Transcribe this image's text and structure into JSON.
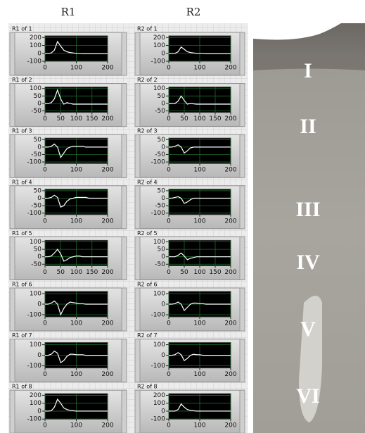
{
  "columns": [
    "R1",
    "R2"
  ],
  "layers": [
    "I",
    "II",
    "III",
    "IV",
    "V",
    "VI"
  ],
  "chart_data": [
    {
      "type": "line",
      "title": "R1 of 1",
      "x": [
        0,
        10,
        20,
        30,
        40,
        50,
        60,
        70,
        80,
        90,
        100,
        110,
        120,
        130,
        140,
        150,
        160,
        170,
        180,
        190,
        200
      ],
      "values": [
        0,
        0,
        5,
        40,
        150,
        90,
        40,
        20,
        10,
        5,
        0,
        0,
        -5,
        -5,
        -5,
        -5,
        -5,
        -5,
        -5,
        -5,
        -5
      ],
      "color": "#ffffff",
      "xlim": [
        0,
        200
      ],
      "xticks": [
        0,
        100,
        200
      ],
      "ylim": [
        -100,
        220
      ],
      "yticks": [
        200,
        100,
        0,
        -100
      ],
      "grid": true
    },
    {
      "type": "line",
      "title": "R2 of 1",
      "x": [
        0,
        10,
        20,
        30,
        40,
        50,
        60,
        70,
        80,
        90,
        100,
        110,
        120,
        130,
        140,
        150,
        160,
        170,
        180,
        190,
        200
      ],
      "values": [
        0,
        0,
        0,
        20,
        80,
        50,
        20,
        10,
        5,
        0,
        0,
        0,
        -5,
        -5,
        -5,
        -5,
        -5,
        -5,
        -5,
        -5,
        -5
      ],
      "color": "#ffffff",
      "xlim": [
        0,
        200
      ],
      "xticks": [
        0,
        100,
        200
      ],
      "ylim": [
        -100,
        220
      ],
      "yticks": [
        200,
        100,
        0,
        -100
      ],
      "grid": true
    },
    {
      "type": "line",
      "title": "R1 of 2",
      "x": [
        0,
        10,
        20,
        30,
        40,
        50,
        60,
        70,
        80,
        90,
        100,
        110,
        120,
        130,
        140,
        150,
        160,
        170,
        180,
        190,
        200
      ],
      "values": [
        0,
        0,
        5,
        30,
        90,
        30,
        -5,
        5,
        0,
        -5,
        -5,
        -5,
        -5,
        -5,
        -5,
        -5,
        -5,
        -5,
        -5,
        -5,
        -5
      ],
      "color": "#ffffff",
      "xlim": [
        0,
        200
      ],
      "xticks": [
        0,
        50,
        100,
        150,
        200
      ],
      "ylim": [
        -60,
        110
      ],
      "yticks": [
        100,
        50,
        0,
        -50
      ],
      "grid": true
    },
    {
      "type": "line",
      "title": "R2 of 2",
      "x": [
        0,
        10,
        20,
        30,
        40,
        50,
        60,
        70,
        80,
        90,
        100,
        110,
        120,
        130,
        140,
        150,
        160,
        170,
        180,
        190,
        200
      ],
      "values": [
        0,
        0,
        0,
        15,
        50,
        20,
        -5,
        0,
        -3,
        -5,
        -5,
        -5,
        -5,
        -5,
        -5,
        -5,
        -5,
        -5,
        -5,
        -5,
        -5
      ],
      "color": "#ffffff",
      "xlim": [
        0,
        200
      ],
      "xticks": [
        0,
        50,
        100,
        150,
        200
      ],
      "ylim": [
        -60,
        110
      ],
      "yticks": [
        100,
        50,
        0,
        -50
      ],
      "grid": true
    },
    {
      "type": "line",
      "title": "R1 of 3",
      "x": [
        0,
        10,
        20,
        30,
        40,
        50,
        60,
        70,
        80,
        90,
        100,
        110,
        120,
        130,
        140,
        150,
        160,
        170,
        180,
        190,
        200
      ],
      "values": [
        0,
        0,
        5,
        20,
        0,
        -70,
        -40,
        -10,
        0,
        5,
        5,
        5,
        5,
        0,
        0,
        0,
        0,
        0,
        0,
        0,
        0
      ],
      "color": "#ffffff",
      "xlim": [
        0,
        200
      ],
      "xticks": [
        0,
        100,
        200
      ],
      "ylim": [
        -110,
        60
      ],
      "yticks": [
        50,
        0,
        -50,
        -100
      ],
      "grid": true
    },
    {
      "type": "line",
      "title": "R2 of 3",
      "x": [
        0,
        10,
        20,
        30,
        40,
        50,
        60,
        70,
        80,
        90,
        100,
        110,
        120,
        130,
        140,
        150,
        160,
        170,
        180,
        190,
        200
      ],
      "values": [
        0,
        0,
        5,
        15,
        0,
        -40,
        -25,
        -5,
        0,
        0,
        0,
        0,
        0,
        0,
        0,
        0,
        0,
        0,
        0,
        0,
        0
      ],
      "color": "#ffffff",
      "xlim": [
        0,
        200
      ],
      "xticks": [
        0,
        100,
        200
      ],
      "ylim": [
        -110,
        60
      ],
      "yticks": [
        50,
        0,
        -50,
        -100
      ],
      "grid": true
    },
    {
      "type": "line",
      "title": "R1 of 4",
      "x": [
        0,
        10,
        20,
        30,
        40,
        50,
        60,
        70,
        80,
        90,
        100,
        110,
        120,
        130,
        140,
        150,
        160,
        170,
        180,
        190,
        200
      ],
      "values": [
        0,
        0,
        5,
        20,
        5,
        -60,
        -50,
        -20,
        -5,
        0,
        5,
        5,
        5,
        5,
        0,
        0,
        0,
        0,
        0,
        0,
        0
      ],
      "color": "#ffffff",
      "xlim": [
        0,
        200
      ],
      "xticks": [
        0,
        100,
        200
      ],
      "ylim": [
        -110,
        60
      ],
      "yticks": [
        50,
        0,
        -50,
        -100
      ],
      "grid": true
    },
    {
      "type": "line",
      "title": "R2 of 4",
      "x": [
        0,
        10,
        20,
        30,
        40,
        50,
        60,
        70,
        80,
        90,
        100,
        110,
        120,
        130,
        140,
        150,
        160,
        170,
        180,
        190,
        200
      ],
      "values": [
        0,
        0,
        5,
        10,
        0,
        -35,
        -25,
        -10,
        0,
        0,
        0,
        0,
        0,
        0,
        0,
        0,
        0,
        0,
        0,
        0,
        0
      ],
      "color": "#ffffff",
      "xlim": [
        0,
        200
      ],
      "xticks": [
        0,
        100,
        200
      ],
      "ylim": [
        -110,
        60
      ],
      "yticks": [
        50,
        0,
        -50,
        -100
      ],
      "grid": true
    },
    {
      "type": "line",
      "title": "R1 of 5",
      "x": [
        0,
        10,
        20,
        30,
        40,
        50,
        60,
        70,
        80,
        90,
        100,
        110,
        120,
        130,
        140,
        150,
        160,
        170,
        180,
        190,
        200
      ],
      "values": [
        0,
        0,
        5,
        25,
        50,
        20,
        -30,
        -20,
        -5,
        0,
        5,
        5,
        0,
        0,
        0,
        0,
        0,
        0,
        0,
        0,
        0
      ],
      "color": "#ffffff",
      "xlim": [
        0,
        200
      ],
      "xticks": [
        0,
        50,
        100,
        150,
        200
      ],
      "ylim": [
        -60,
        110
      ],
      "yticks": [
        100,
        50,
        0,
        -50
      ],
      "grid": true
    },
    {
      "type": "line",
      "title": "R2 of 5",
      "x": [
        0,
        10,
        20,
        30,
        40,
        50,
        60,
        70,
        80,
        90,
        100,
        110,
        120,
        130,
        140,
        150,
        160,
        170,
        180,
        190,
        200
      ],
      "values": [
        0,
        0,
        0,
        10,
        25,
        5,
        -20,
        -10,
        -5,
        0,
        0,
        0,
        0,
        0,
        0,
        0,
        0,
        0,
        0,
        0,
        0
      ],
      "color": "#ffffff",
      "xlim": [
        0,
        200
      ],
      "xticks": [
        0,
        50,
        100,
        150,
        200
      ],
      "ylim": [
        -60,
        110
      ],
      "yticks": [
        100,
        50,
        0,
        -50
      ],
      "grid": true
    },
    {
      "type": "line",
      "title": "R1 of 6",
      "x": [
        0,
        10,
        20,
        30,
        40,
        50,
        60,
        70,
        80,
        90,
        100,
        110,
        120,
        130,
        140,
        150,
        160,
        170,
        180,
        190,
        200
      ],
      "values": [
        0,
        0,
        10,
        30,
        0,
        -100,
        -40,
        0,
        20,
        15,
        10,
        5,
        5,
        0,
        0,
        0,
        0,
        0,
        0,
        0,
        0
      ],
      "color": "#ffffff",
      "xlim": [
        0,
        200
      ],
      "xticks": [
        0,
        100,
        200
      ],
      "ylim": [
        -120,
        120
      ],
      "yticks": [
        100,
        0,
        -100
      ],
      "grid": true
    },
    {
      "type": "line",
      "title": "R2 of 6",
      "x": [
        0,
        10,
        20,
        30,
        40,
        50,
        60,
        70,
        80,
        90,
        100,
        110,
        120,
        130,
        140,
        150,
        160,
        170,
        180,
        190,
        200
      ],
      "values": [
        0,
        0,
        5,
        20,
        0,
        -60,
        -30,
        0,
        10,
        10,
        5,
        5,
        0,
        0,
        0,
        0,
        0,
        0,
        0,
        0,
        0
      ],
      "color": "#ffffff",
      "xlim": [
        0,
        200
      ],
      "xticks": [
        0,
        100,
        200
      ],
      "ylim": [
        -120,
        120
      ],
      "yticks": [
        100,
        0,
        -100
      ],
      "grid": true
    },
    {
      "type": "line",
      "title": "R1 of 7",
      "x": [
        0,
        10,
        20,
        30,
        40,
        50,
        60,
        70,
        80,
        90,
        100,
        110,
        120,
        130,
        140,
        150,
        160,
        170,
        180,
        190,
        200
      ],
      "values": [
        0,
        0,
        10,
        40,
        20,
        -70,
        -50,
        -10,
        10,
        10,
        5,
        5,
        5,
        0,
        0,
        0,
        0,
        0,
        0,
        0,
        0
      ],
      "color": "#ffffff",
      "xlim": [
        0,
        200
      ],
      "xticks": [
        0,
        100,
        200
      ],
      "ylim": [
        -120,
        120
      ],
      "yticks": [
        100,
        0,
        -100
      ],
      "grid": true
    },
    {
      "type": "line",
      "title": "R2 of 7",
      "x": [
        0,
        10,
        20,
        30,
        40,
        50,
        60,
        70,
        80,
        90,
        100,
        110,
        120,
        130,
        140,
        150,
        160,
        170,
        180,
        190,
        200
      ],
      "values": [
        0,
        0,
        5,
        25,
        5,
        -50,
        -30,
        0,
        10,
        5,
        5,
        0,
        0,
        0,
        0,
        0,
        0,
        0,
        0,
        0,
        0
      ],
      "color": "#ffffff",
      "xlim": [
        0,
        200
      ],
      "xticks": [
        0,
        100,
        200
      ],
      "ylim": [
        -120,
        120
      ],
      "yticks": [
        100,
        0,
        -100
      ],
      "grid": true
    },
    {
      "type": "line",
      "title": "R1 of 8",
      "x": [
        0,
        10,
        20,
        30,
        40,
        50,
        60,
        70,
        80,
        90,
        100,
        110,
        120,
        130,
        140,
        150,
        160,
        170,
        180,
        190,
        200
      ],
      "values": [
        0,
        0,
        5,
        50,
        150,
        100,
        40,
        20,
        10,
        5,
        0,
        0,
        0,
        0,
        0,
        0,
        0,
        0,
        0,
        0,
        0
      ],
      "color": "#ffffff",
      "xlim": [
        0,
        200
      ],
      "xticks": [
        0,
        100,
        200
      ],
      "ylim": [
        -100,
        220
      ],
      "yticks": [
        200,
        100,
        0,
        -100
      ],
      "grid": true
    },
    {
      "type": "line",
      "title": "R2 of 8",
      "x": [
        0,
        10,
        20,
        30,
        40,
        50,
        60,
        70,
        80,
        90,
        100,
        110,
        120,
        130,
        140,
        150,
        160,
        170,
        180,
        190,
        200
      ],
      "values": [
        0,
        0,
        0,
        20,
        90,
        50,
        20,
        10,
        5,
        0,
        0,
        0,
        0,
        0,
        0,
        0,
        0,
        0,
        0,
        0,
        0
      ],
      "color": "#ffffff",
      "xlim": [
        0,
        200
      ],
      "xticks": [
        0,
        100,
        200
      ],
      "ylim": [
        -100,
        220
      ],
      "yticks": [
        200,
        100,
        0,
        -100
      ],
      "grid": true
    }
  ]
}
